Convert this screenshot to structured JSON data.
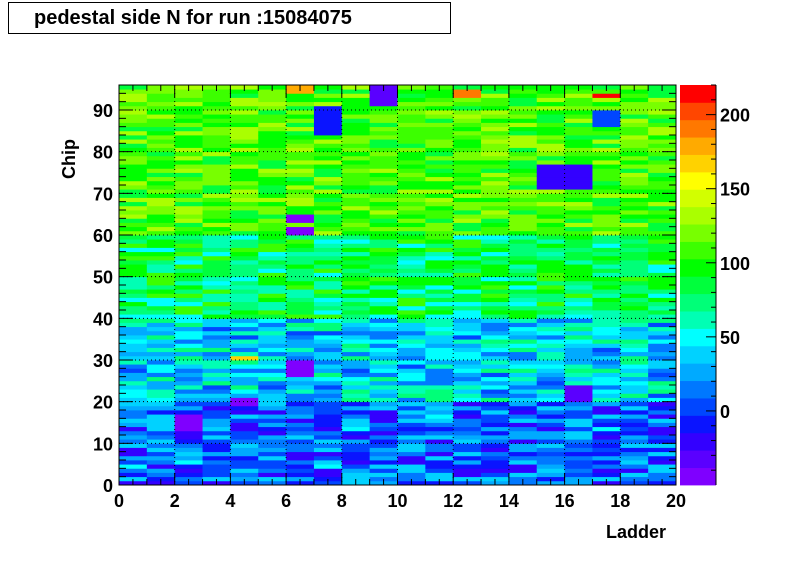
{
  "chart_data": {
    "type": "heatmap",
    "title": "pedestal side N for run :15084075",
    "xlabel": "Ladder",
    "ylabel": "Chip",
    "xlim": [
      0,
      20
    ],
    "ylim": [
      0,
      96
    ],
    "x_ticks": [
      "0",
      "2",
      "4",
      "6",
      "8",
      "10",
      "12",
      "14",
      "16",
      "18",
      "20"
    ],
    "y_ticks": [
      "0",
      "10",
      "20",
      "30",
      "40",
      "50",
      "60",
      "70",
      "80",
      "90"
    ],
    "colorbar": {
      "zlim": [
        -50,
        220
      ],
      "ticks": [
        "0",
        "50",
        "100",
        "150",
        "200"
      ],
      "palette": [
        "#7f00ff",
        "#5a00ff",
        "#3300ff",
        "#0a14ff",
        "#0046ff",
        "#0078ff",
        "#00aaff",
        "#00d2ff",
        "#00ffff",
        "#00ffb4",
        "#00ff78",
        "#00ff3c",
        "#00ff00",
        "#3cff00",
        "#78ff00",
        "#aaff00",
        "#d2ff00",
        "#ffff00",
        "#ffd200",
        "#ffaa00",
        "#ff7800",
        "#ff4600",
        "#ff0000"
      ]
    },
    "grid": true,
    "bins": {
      "nx": 20,
      "ny": 96,
      "description": "pedestal per ladder (x) and chip (y); low values (~-20..40) at low chip numbers, ~80..130 at high chip numbers, with a few outliers",
      "bands": [
        {
          "chips": [
            0,
            20
          ],
          "mean": 10,
          "spread": 35
        },
        {
          "chips": [
            20,
            40
          ],
          "mean": 40,
          "spread": 35
        },
        {
          "chips": [
            40,
            60
          ],
          "mean": 80,
          "spread": 30
        },
        {
          "chips": [
            60,
            96
          ],
          "mean": 110,
          "spread": 25
        }
      ],
      "outliers": [
        {
          "ladder": 9,
          "chips": [
            91,
            96
          ],
          "value": -30
        },
        {
          "ladder": 7,
          "chips": [
            84,
            91
          ],
          "value": -10
        },
        {
          "ladder": 17,
          "chips": [
            86,
            90
          ],
          "value": 0
        },
        {
          "ladder": 15,
          "chips": [
            71,
            77
          ],
          "value": -25
        },
        {
          "ladder": 16,
          "chips": [
            71,
            77
          ],
          "value": -20
        },
        {
          "ladder": 6,
          "chips": [
            26,
            30
          ],
          "value": -45
        },
        {
          "ladder": 6,
          "chips": [
            60,
            62
          ],
          "value": -45
        },
        {
          "ladder": 6,
          "chips": [
            63,
            65
          ],
          "value": -40
        },
        {
          "ladder": 2,
          "chips": [
            13,
            17
          ],
          "value": -40
        },
        {
          "ladder": 4,
          "chips": [
            19,
            21
          ],
          "value": -40
        },
        {
          "ladder": 16,
          "chips": [
            20,
            24
          ],
          "value": -35
        },
        {
          "ladder": 12,
          "chips": [
            93,
            95
          ],
          "value": 190
        },
        {
          "ladder": 6,
          "chips": [
            94,
            96
          ],
          "value": 180
        },
        {
          "ladder": 17,
          "chips": [
            93,
            94
          ],
          "value": 220
        },
        {
          "ladder": 4,
          "chips": [
            30,
            31
          ],
          "value": 170
        }
      ]
    }
  }
}
